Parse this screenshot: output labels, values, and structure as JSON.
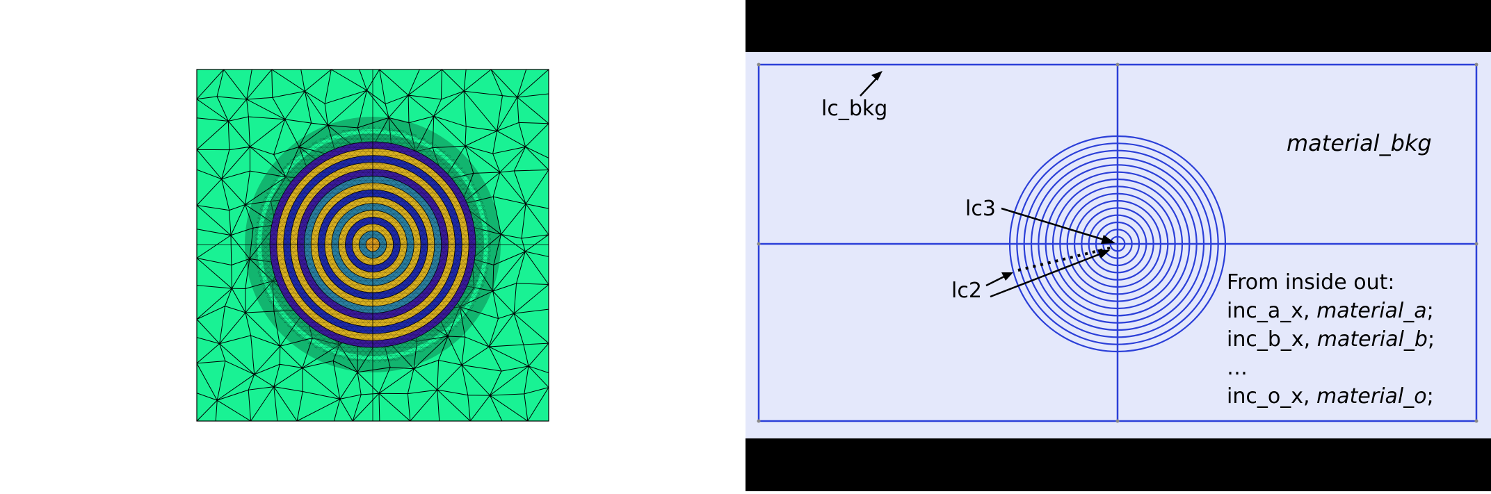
{
  "mesh_figure": {
    "colors": {
      "background_material": "#19f294",
      "edge": "#000000",
      "ring_dark": "#3a1a9a",
      "ring_blue": "#1e2aa8",
      "ring_teal": "#2a7fa0",
      "ring_yellow": "#d8b020",
      "center": "#e0a020"
    }
  },
  "geometry_figure": {
    "labels": {
      "lc_bkg": "lc_bkg",
      "lc3": "lc3",
      "lc2": "lc2",
      "material_bkg": "material_bkg"
    },
    "legend": {
      "heading": "From inside out:",
      "lines": [
        {
          "name": "inc_a_x, ",
          "material": "material_a",
          "end": ";"
        },
        {
          "name": "inc_b_x, ",
          "material": "material_b",
          "end": ";"
        },
        {
          "name": "…",
          "material": "",
          "end": ""
        },
        {
          "name": "inc_o_x, ",
          "material": "material_o",
          "end": ";"
        }
      ]
    },
    "ring_count": 15,
    "colors": {
      "panel_background": "#e4e8fb",
      "line": "#2b3fd8",
      "frame": "#000000"
    }
  }
}
